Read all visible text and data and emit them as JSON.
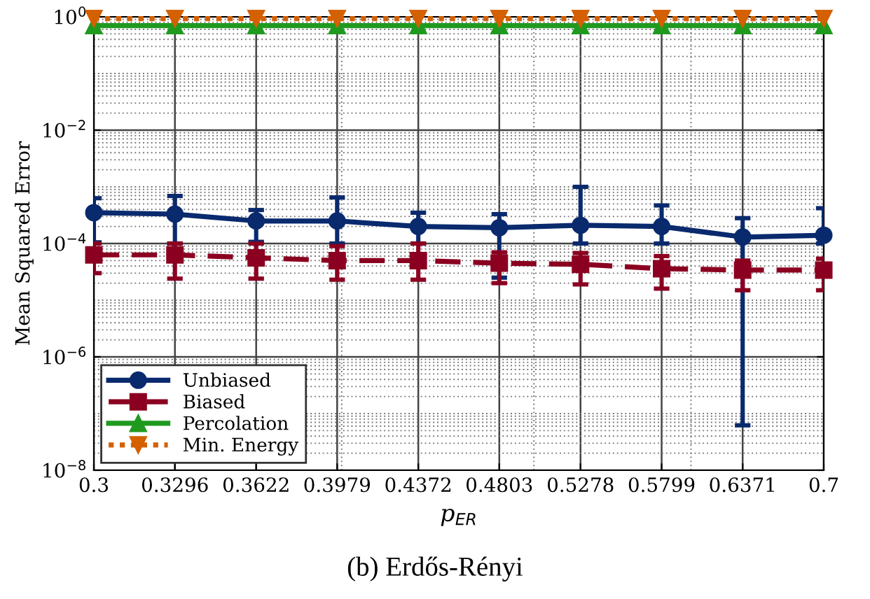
{
  "chart_data": {
    "type": "line",
    "xlabel": "p$_{ER}$",
    "ylabel": "Mean Squared Error",
    "annotations": [
      "(b) Erdős-Rényi"
    ],
    "x": [
      0.3,
      0.3296,
      0.3622,
      0.3979,
      0.4372,
      0.4803,
      0.5278,
      0.5799,
      0.6371,
      0.7
    ],
    "series": [
      {
        "name": "Unbiased",
        "color": "#0a2a6e",
        "marker": "circle",
        "line_style": "solid",
        "values": [
          0.00035,
          0.00033,
          0.00025,
          0.00025,
          0.0002,
          0.00019,
          0.00021,
          0.0002,
          0.00013,
          0.00014
        ],
        "errors": [
          [
            0.000105,
            0.00063
          ],
          [
            0.0001,
            0.00069
          ],
          [
            0.000107,
            0.00039
          ],
          [
            0.0001,
            0.00065
          ],
          [
            0.0001,
            0.00035
          ],
          [
            2.5e-05,
            0.00033
          ],
          [
            0.0001,
            0.001
          ],
          [
            0.0001,
            0.00047
          ],
          [
            6.2e-08,
            0.00028
          ],
          [
            0.0001,
            0.00042
          ]
        ]
      },
      {
        "name": "Biased",
        "color": "#8b0020",
        "marker": "square",
        "line_style": "dashed",
        "values": [
          6.3e-05,
          6.3e-05,
          5.6e-05,
          5e-05,
          5e-05,
          4.5e-05,
          4.3e-05,
          3.6e-05,
          3.4e-05,
          3.4e-05
        ],
        "errors": [
          [
            3e-05,
            0.0001
          ],
          [
            2.4e-05,
            0.0001
          ],
          [
            2.4e-05,
            0.0001
          ],
          [
            2.3e-05,
            9e-05
          ],
          [
            2.3e-05,
            0.0001
          ],
          [
            2e-05,
            7e-05
          ],
          [
            1.9e-05,
            6.8e-05
          ],
          [
            1.6e-05,
            6e-05
          ],
          [
            1.5e-05,
            5e-05
          ],
          [
            1.5e-05,
            5.4e-05
          ]
        ]
      },
      {
        "name": "Percolation",
        "color": "#1f9a1f",
        "marker": "triangle",
        "line_style": "solid",
        "values": [
          0.7,
          0.7,
          0.7,
          0.7,
          0.7,
          0.7,
          0.7,
          0.7,
          0.7,
          0.7
        ]
      },
      {
        "name": "Min. Energy",
        "color": "#d46000",
        "marker": "triangle_down",
        "line_style": "dotted",
        "values": [
          0.93,
          0.93,
          0.93,
          0.93,
          0.93,
          0.93,
          0.93,
          0.93,
          0.93,
          0.93
        ]
      }
    ],
    "log": "xy",
    "xlim": [
      0.3,
      0.7
    ],
    "xticks": [
      0.3,
      0.3296,
      0.3622,
      0.3979,
      0.4372,
      0.4803,
      0.5278,
      0.5799,
      0.6371,
      0.7
    ],
    "ylim": [
      1e-08,
      1
    ],
    "yticks": [
      {
        "value": 1e-08,
        "label": "10$^{−8}$"
      },
      {
        "value": 1e-06,
        "label": "10$^{−6}$"
      },
      {
        "value": 0.0001,
        "label": "10$^{−4}$"
      },
      {
        "value": 0.01,
        "label": "10$^{−2}$"
      },
      {
        "value": 1,
        "label": "10$^{0}$"
      }
    ],
    "grid": true,
    "legend": "bottom left"
  }
}
